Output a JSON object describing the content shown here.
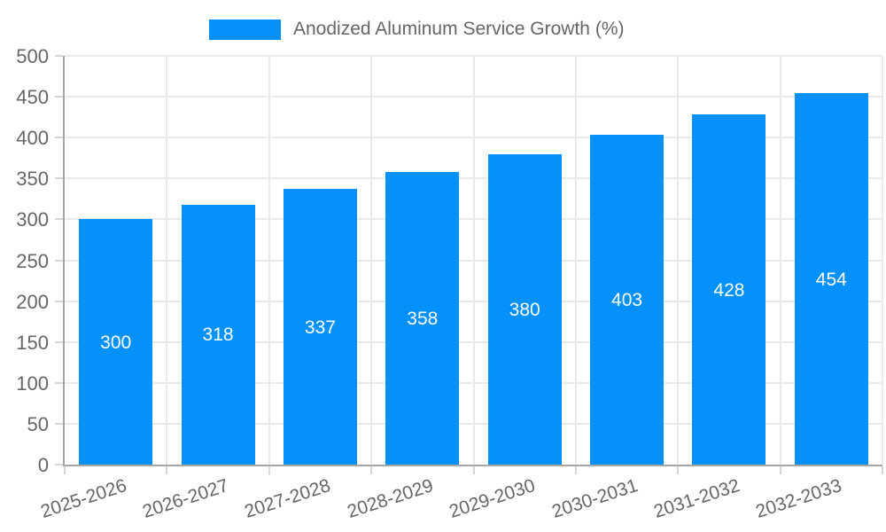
{
  "legend": {
    "label": "Anodized Aluminum Service Growth (%)"
  },
  "chart_data": {
    "type": "bar",
    "title": "",
    "legend_entries": [
      "Anodized Aluminum Service Growth (%)"
    ],
    "legend_position": "top",
    "categories": [
      "2025-2026",
      "2026-2027",
      "2027-2028",
      "2028-2029",
      "2029-2030",
      "2030-2031",
      "2031-2032",
      "2032-2033"
    ],
    "values": [
      300,
      318,
      337,
      358,
      380,
      403,
      428,
      454
    ],
    "value_labels": [
      "300",
      "318",
      "337",
      "358",
      "380",
      "403",
      "428",
      "454"
    ],
    "xlabel": "",
    "ylabel": "",
    "ylim": [
      0,
      500
    ],
    "ytick_step": 50,
    "yticks": [
      0,
      50,
      100,
      150,
      200,
      250,
      300,
      350,
      400,
      450,
      500
    ],
    "grid": true,
    "colors": {
      "bar": "#0591fb",
      "value_label": "#ffffff",
      "axis_text": "#666666",
      "gridline": "#e9e9e9",
      "axis_line": "#a5a5a5",
      "tick_mark": "#d6d6d6"
    }
  }
}
